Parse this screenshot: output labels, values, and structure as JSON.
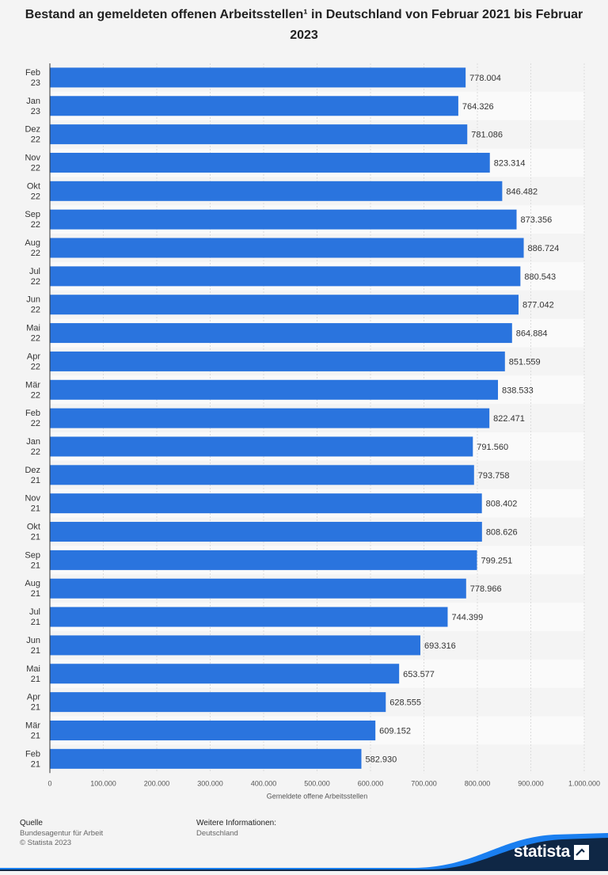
{
  "title": "Bestand an gemeldeten offenen Arbeitsstellen¹ in Deutschland von Februar 2021 bis Februar 2023",
  "footer": {
    "source_heading": "Quelle",
    "source": "Bundesagentur für Arbeit",
    "copyright": "© Statista 2023",
    "info_heading": "Weitere Informationen:",
    "info": "Deutschland"
  },
  "brand": {
    "name": "statista"
  },
  "colors": {
    "bar": "#2a74de",
    "background": "#f4f4f4",
    "brand_dark": "#0f2745",
    "brand_accent": "#1a7ff0"
  },
  "chart_data": {
    "type": "bar",
    "orientation": "horizontal",
    "xlabel": "Gemeldete offene Arbeitsstellen",
    "xlim": [
      0,
      1000000
    ],
    "ticks": [
      0,
      100000,
      200000,
      300000,
      400000,
      500000,
      600000,
      700000,
      800000,
      900000,
      1000000
    ],
    "tick_labels": [
      "0",
      "100.000",
      "200.000",
      "300.000",
      "400.000",
      "500.000",
      "600.000",
      "700.000",
      "800.000",
      "900.000",
      "1.000.000"
    ],
    "grid": true,
    "categories": [
      [
        "Feb",
        "23"
      ],
      [
        "Jan",
        "23"
      ],
      [
        "Dez",
        "22"
      ],
      [
        "Nov",
        "22"
      ],
      [
        "Okt",
        "22"
      ],
      [
        "Sep",
        "22"
      ],
      [
        "Aug",
        "22"
      ],
      [
        "Jul",
        "22"
      ],
      [
        "Jun",
        "22"
      ],
      [
        "Mai",
        "22"
      ],
      [
        "Apr",
        "22"
      ],
      [
        "Mär",
        "22"
      ],
      [
        "Feb",
        "22"
      ],
      [
        "Jan",
        "22"
      ],
      [
        "Dez",
        "21"
      ],
      [
        "Nov",
        "21"
      ],
      [
        "Okt",
        "21"
      ],
      [
        "Sep",
        "21"
      ],
      [
        "Aug",
        "21"
      ],
      [
        "Jul",
        "21"
      ],
      [
        "Jun",
        "21"
      ],
      [
        "Mai",
        "21"
      ],
      [
        "Apr",
        "21"
      ],
      [
        "Mär",
        "21"
      ],
      [
        "Feb",
        "21"
      ]
    ],
    "values": [
      778004,
      764326,
      781086,
      823314,
      846482,
      873356,
      886724,
      880543,
      877042,
      864884,
      851559,
      838533,
      822471,
      791560,
      793758,
      808402,
      808626,
      799251,
      778966,
      744399,
      693316,
      653577,
      628555,
      609152,
      582930
    ],
    "value_labels": [
      "778.004",
      "764.326",
      "781.086",
      "823.314",
      "846.482",
      "873.356",
      "886.724",
      "880.543",
      "877.042",
      "864.884",
      "851.559",
      "838.533",
      "822.471",
      "791.560",
      "793.758",
      "808.402",
      "808.626",
      "799.251",
      "778.966",
      "744.399",
      "693.316",
      "653.577",
      "628.555",
      "609.152",
      "582.930"
    ]
  }
}
